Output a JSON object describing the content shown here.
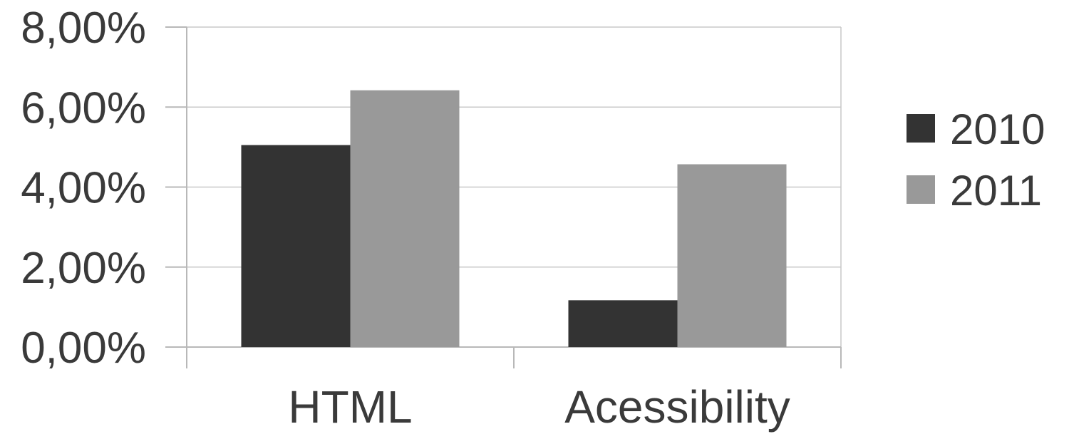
{
  "chart_data": {
    "type": "bar",
    "categories": [
      "HTML",
      "Acessibility"
    ],
    "series": [
      {
        "name": "2010",
        "values": [
          5.05,
          1.17
        ],
        "color": "#333333"
      },
      {
        "name": "2011",
        "values": [
          6.42,
          4.57
        ],
        "color": "#999999"
      }
    ],
    "ylim": [
      0,
      8
    ],
    "yticks": [
      0,
      2,
      4,
      6,
      8
    ],
    "ytick_labels": [
      "0,00%",
      "2,00%",
      "4,00%",
      "6,00%",
      "8,00%"
    ],
    "grid": true,
    "legend_position": "right",
    "title": "",
    "xlabel": "",
    "ylabel": ""
  }
}
